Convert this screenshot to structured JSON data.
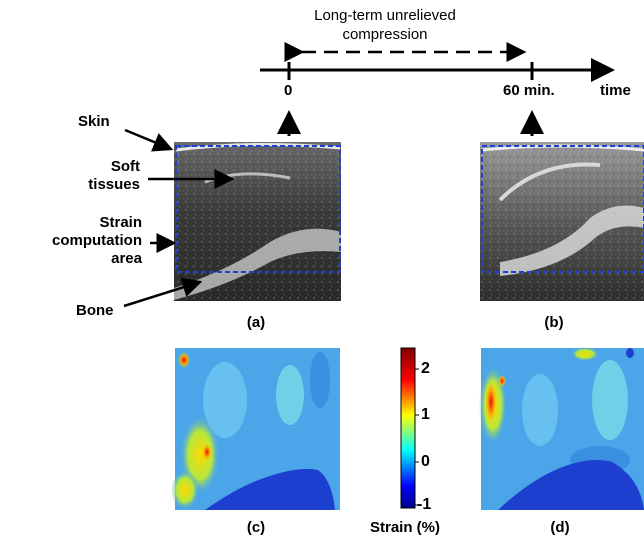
{
  "timeline": {
    "title_line1": "Long-term unrelieved",
    "title_line2": "compression",
    "tick_start": "0",
    "tick_end": "60 min.",
    "axis_label": "time"
  },
  "annotations": {
    "skin": "Skin",
    "soft_tissues_line1": "Soft",
    "soft_tissues_line2": "tissues",
    "strain_area_line1": "Strain",
    "strain_area_line2": "computation",
    "strain_area_line3": "area",
    "bone": "Bone"
  },
  "panels": {
    "a": "(a)",
    "b": "(b)",
    "c": "(c)",
    "d": "(d)"
  },
  "colorbar": {
    "label": "Strain (%)",
    "ticks": [
      "2",
      "1",
      "0",
      "-1"
    ],
    "range": [
      -1,
      2.5
    ]
  },
  "colors": {
    "roi_box": "#1f3fd6",
    "bone_region": "#1c3fd0",
    "strain_background": "#4aa6e8"
  }
}
